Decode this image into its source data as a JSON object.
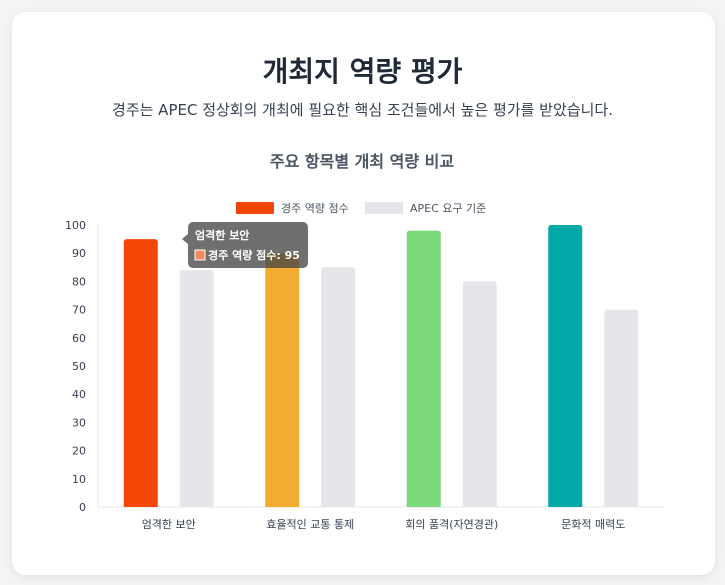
{
  "page": {
    "title": "개최지 역량 평가",
    "subtitle": "경주는 APEC 정상회의 개최에 필요한 핵심 조건들에서 높은 평가를 받았습니다."
  },
  "chart_data": {
    "type": "bar",
    "title": "주요 항목별 개최 역량 비교",
    "categories": [
      "엄격한 보안",
      "효율적인 교통 통제",
      "회의 품격(자연경관)",
      "문화적 매력도"
    ],
    "series": [
      {
        "name": "경주 역량 점수",
        "values": [
          95,
          90,
          98,
          100
        ],
        "colors": [
          "#f44707",
          "#f2ad31",
          "#7bd97b",
          "#00a9a8"
        ]
      },
      {
        "name": "APEC 요구 기준",
        "values": [
          84,
          85,
          80,
          70
        ],
        "colors": [
          "#e5e6e9",
          "#e5e6e9",
          "#e5e6e9",
          "#e5e6e9"
        ]
      }
    ],
    "ylim": [
      0,
      100
    ],
    "yticks": [
      0,
      10,
      20,
      30,
      40,
      50,
      60,
      70,
      80,
      90,
      100
    ],
    "legend_position": "top",
    "legend_color_first_series": "#f44707",
    "grid": false,
    "tooltip": {
      "title": "엄격한 보안",
      "body": "경주 역량 점수: 95",
      "swatch": "#f28a5e"
    }
  }
}
